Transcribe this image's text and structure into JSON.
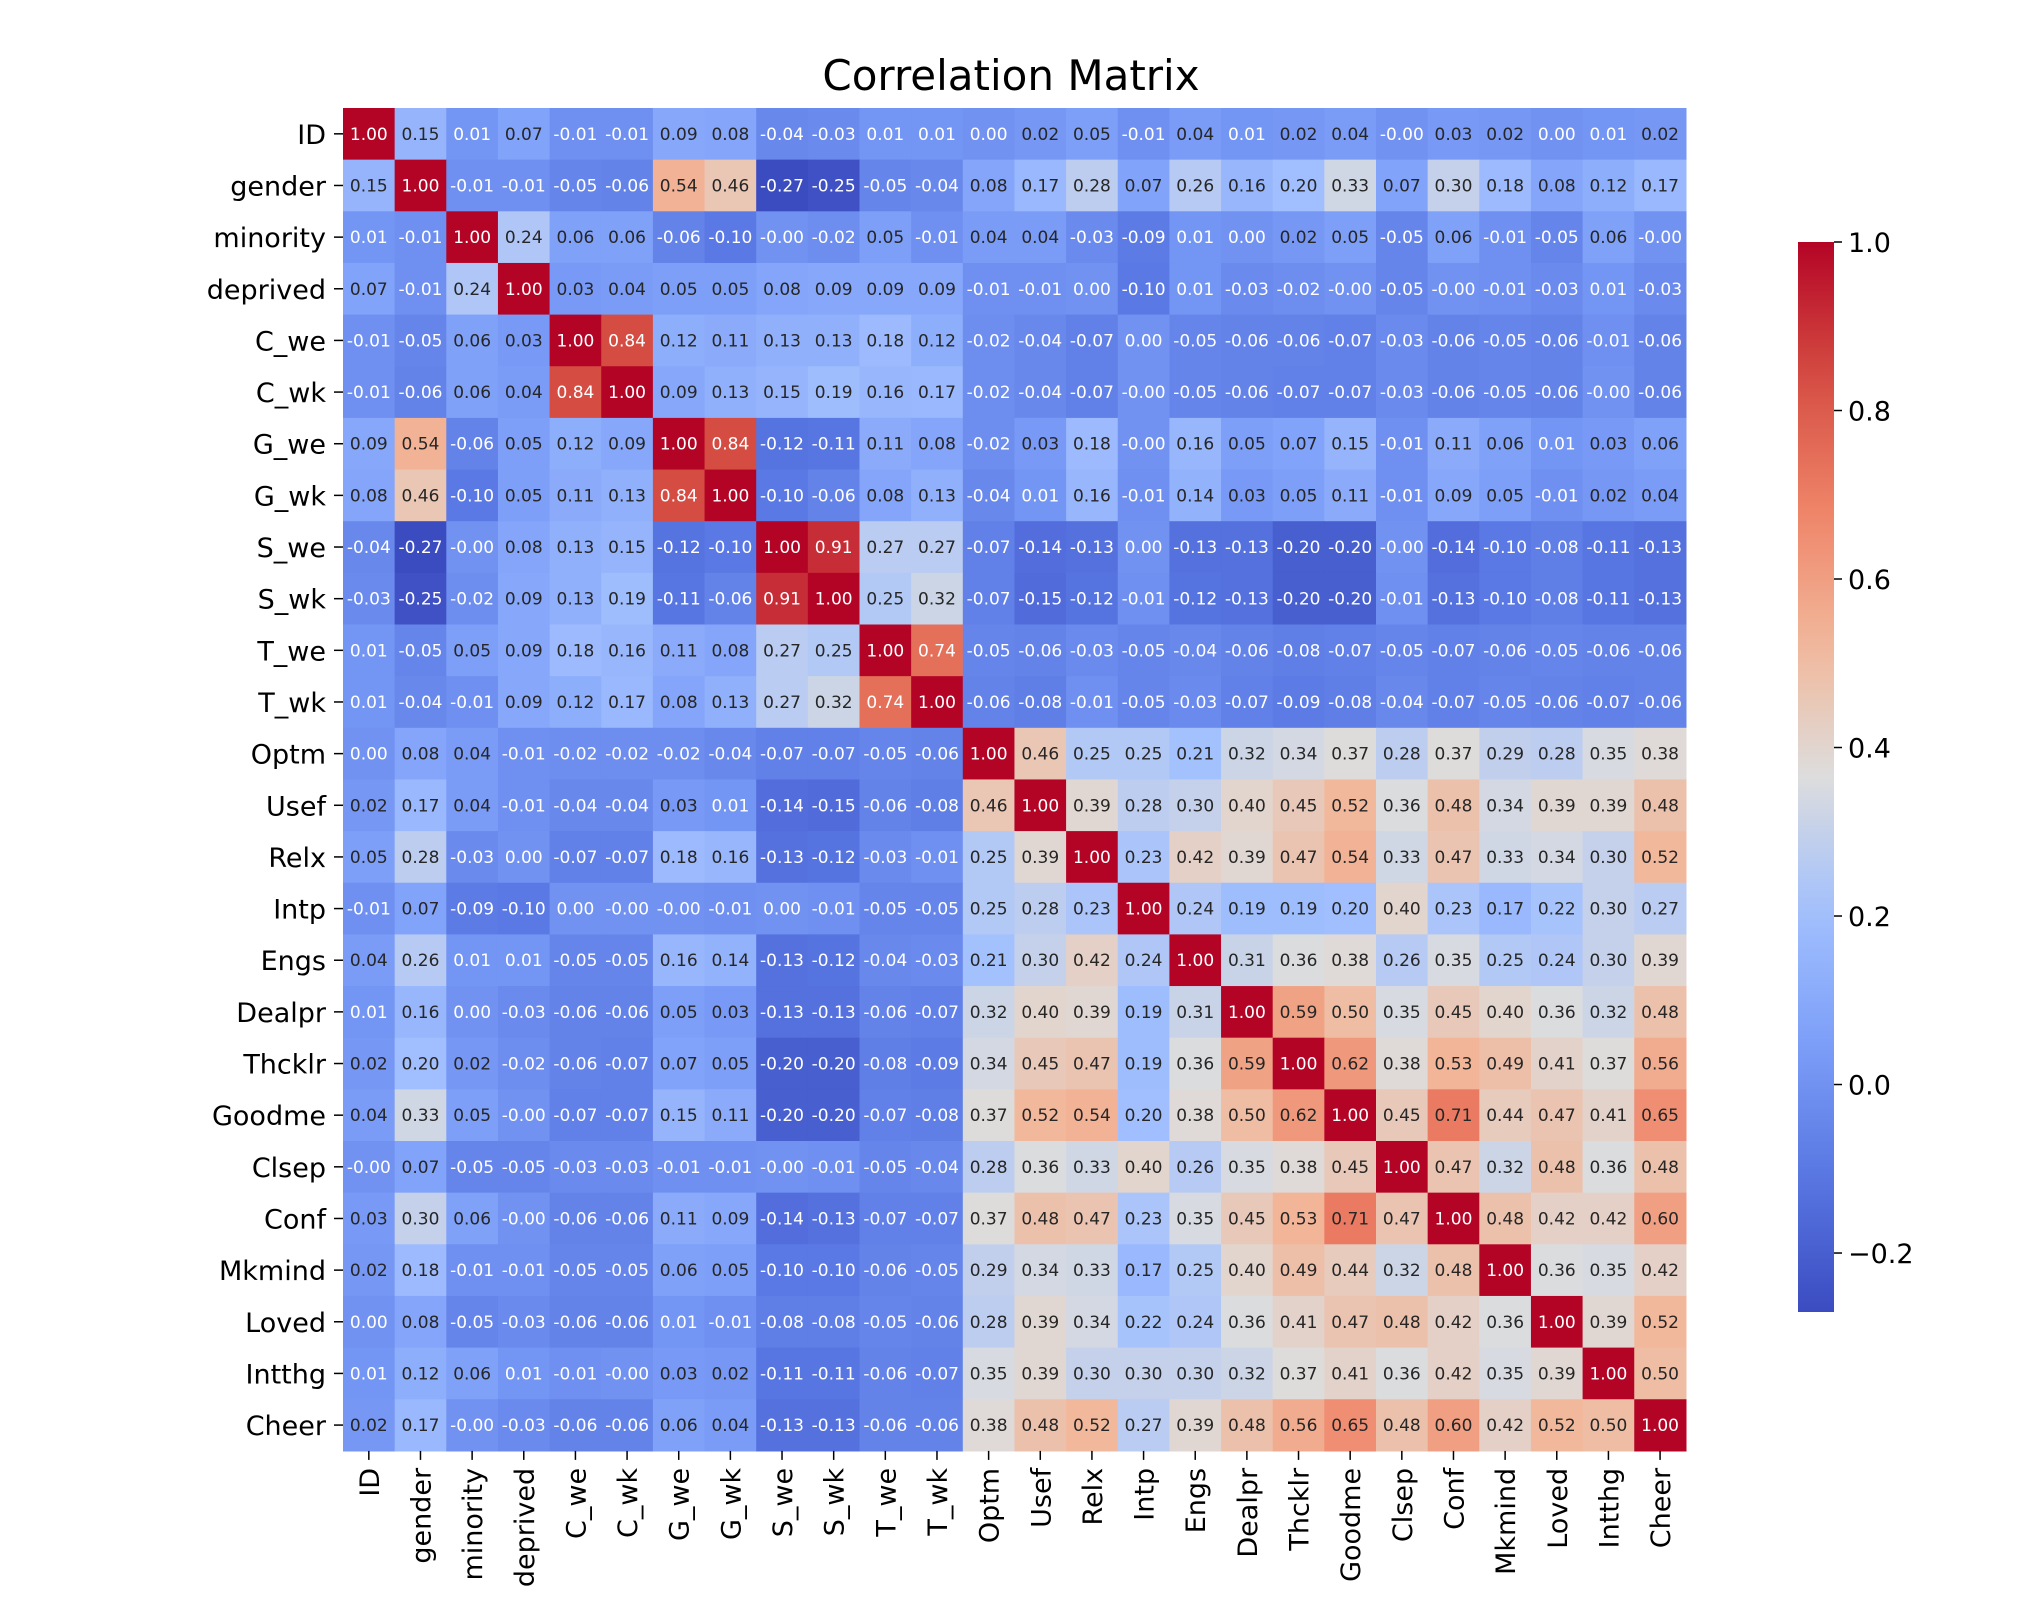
{
  "chart_data": {
    "type": "heatmap",
    "title": "Correlation Matrix",
    "labels": [
      "ID",
      "gender",
      "minority",
      "deprived",
      "C_we",
      "C_wk",
      "G_we",
      "G_wk",
      "S_we",
      "S_wk",
      "T_we",
      "T_wk",
      "Optm",
      "Usef",
      "Relx",
      "Intp",
      "Engs",
      "Dealpr",
      "Thcklr",
      "Goodme",
      "Clsep",
      "Conf",
      "Mkmind",
      "Loved",
      "Intthg",
      "Cheer"
    ],
    "matrix": [
      [
        1.0,
        0.15,
        0.01,
        0.07,
        -0.01,
        -0.01,
        0.09,
        0.08,
        -0.04,
        -0.03,
        0.01,
        0.01,
        0.0,
        0.02,
        0.05,
        -0.01,
        0.04,
        0.01,
        0.02,
        0.04,
        -0.0,
        0.03,
        0.02,
        0.0,
        0.01,
        0.02
      ],
      [
        0.15,
        1.0,
        -0.01,
        -0.01,
        -0.05,
        -0.06,
        0.54,
        0.46,
        -0.27,
        -0.25,
        -0.05,
        -0.04,
        0.08,
        0.17,
        0.28,
        0.07,
        0.26,
        0.16,
        0.2,
        0.33,
        0.07,
        0.3,
        0.18,
        0.08,
        0.12,
        0.17
      ],
      [
        0.01,
        -0.01,
        1.0,
        0.24,
        0.06,
        0.06,
        -0.06,
        -0.1,
        -0.0,
        -0.02,
        0.05,
        -0.01,
        0.04,
        0.04,
        -0.03,
        -0.09,
        0.01,
        0.0,
        0.02,
        0.05,
        -0.05,
        0.06,
        -0.01,
        -0.05,
        0.06,
        -0.0
      ],
      [
        0.07,
        -0.01,
        0.24,
        1.0,
        0.03,
        0.04,
        0.05,
        0.05,
        0.08,
        0.09,
        0.09,
        0.09,
        -0.01,
        -0.01,
        0.0,
        -0.1,
        0.01,
        -0.03,
        -0.02,
        -0.0,
        -0.05,
        -0.0,
        -0.01,
        -0.03,
        0.01,
        -0.03
      ],
      [
        -0.01,
        -0.05,
        0.06,
        0.03,
        1.0,
        0.84,
        0.12,
        0.11,
        0.13,
        0.13,
        0.18,
        0.12,
        -0.02,
        -0.04,
        -0.07,
        0.0,
        -0.05,
        -0.06,
        -0.06,
        -0.07,
        -0.03,
        -0.06,
        -0.05,
        -0.06,
        -0.01,
        -0.06
      ],
      [
        -0.01,
        -0.06,
        0.06,
        0.04,
        0.84,
        1.0,
        0.09,
        0.13,
        0.15,
        0.19,
        0.16,
        0.17,
        -0.02,
        -0.04,
        -0.07,
        -0.0,
        -0.05,
        -0.06,
        -0.07,
        -0.07,
        -0.03,
        -0.06,
        -0.05,
        -0.06,
        -0.0,
        -0.06
      ],
      [
        0.09,
        0.54,
        -0.06,
        0.05,
        0.12,
        0.09,
        1.0,
        0.84,
        -0.12,
        -0.11,
        0.11,
        0.08,
        -0.02,
        0.03,
        0.18,
        -0.0,
        0.16,
        0.05,
        0.07,
        0.15,
        -0.01,
        0.11,
        0.06,
        0.01,
        0.03,
        0.06
      ],
      [
        0.08,
        0.46,
        -0.1,
        0.05,
        0.11,
        0.13,
        0.84,
        1.0,
        -0.1,
        -0.06,
        0.08,
        0.13,
        -0.04,
        0.01,
        0.16,
        -0.01,
        0.14,
        0.03,
        0.05,
        0.11,
        -0.01,
        0.09,
        0.05,
        -0.01,
        0.02,
        0.04
      ],
      [
        -0.04,
        -0.27,
        -0.0,
        0.08,
        0.13,
        0.15,
        -0.12,
        -0.1,
        1.0,
        0.91,
        0.27,
        0.27,
        -0.07,
        -0.14,
        -0.13,
        0.0,
        -0.13,
        -0.13,
        -0.2,
        -0.2,
        -0.0,
        -0.14,
        -0.1,
        -0.08,
        -0.11,
        -0.13
      ],
      [
        -0.03,
        -0.25,
        -0.02,
        0.09,
        0.13,
        0.19,
        -0.11,
        -0.06,
        0.91,
        1.0,
        0.25,
        0.32,
        -0.07,
        -0.15,
        -0.12,
        -0.01,
        -0.12,
        -0.13,
        -0.2,
        -0.2,
        -0.01,
        -0.13,
        -0.1,
        -0.08,
        -0.11,
        -0.13
      ],
      [
        0.01,
        -0.05,
        0.05,
        0.09,
        0.18,
        0.16,
        0.11,
        0.08,
        0.27,
        0.25,
        1.0,
        0.74,
        -0.05,
        -0.06,
        -0.03,
        -0.05,
        -0.04,
        -0.06,
        -0.08,
        -0.07,
        -0.05,
        -0.07,
        -0.06,
        -0.05,
        -0.06,
        -0.06
      ],
      [
        0.01,
        -0.04,
        -0.01,
        0.09,
        0.12,
        0.17,
        0.08,
        0.13,
        0.27,
        0.32,
        0.74,
        1.0,
        -0.06,
        -0.08,
        -0.01,
        -0.05,
        -0.03,
        -0.07,
        -0.09,
        -0.08,
        -0.04,
        -0.07,
        -0.05,
        -0.06,
        -0.07,
        -0.06
      ],
      [
        0.0,
        0.08,
        0.04,
        -0.01,
        -0.02,
        -0.02,
        -0.02,
        -0.04,
        -0.07,
        -0.07,
        -0.05,
        -0.06,
        1.0,
        0.46,
        0.25,
        0.25,
        0.21,
        0.32,
        0.34,
        0.37,
        0.28,
        0.37,
        0.29,
        0.28,
        0.35,
        0.38
      ],
      [
        0.02,
        0.17,
        0.04,
        -0.01,
        -0.04,
        -0.04,
        0.03,
        0.01,
        -0.14,
        -0.15,
        -0.06,
        -0.08,
        0.46,
        1.0,
        0.39,
        0.28,
        0.3,
        0.4,
        0.45,
        0.52,
        0.36,
        0.48,
        0.34,
        0.39,
        0.39,
        0.48
      ],
      [
        0.05,
        0.28,
        -0.03,
        0.0,
        -0.07,
        -0.07,
        0.18,
        0.16,
        -0.13,
        -0.12,
        -0.03,
        -0.01,
        0.25,
        0.39,
        1.0,
        0.23,
        0.42,
        0.39,
        0.47,
        0.54,
        0.33,
        0.47,
        0.33,
        0.34,
        0.3,
        0.52
      ],
      [
        -0.01,
        0.07,
        -0.09,
        -0.1,
        0.0,
        -0.0,
        -0.0,
        -0.01,
        0.0,
        -0.01,
        -0.05,
        -0.05,
        0.25,
        0.28,
        0.23,
        1.0,
        0.24,
        0.19,
        0.19,
        0.2,
        0.4,
        0.23,
        0.17,
        0.22,
        0.3,
        0.27
      ],
      [
        0.04,
        0.26,
        0.01,
        0.01,
        -0.05,
        -0.05,
        0.16,
        0.14,
        -0.13,
        -0.12,
        -0.04,
        -0.03,
        0.21,
        0.3,
        0.42,
        0.24,
        1.0,
        0.31,
        0.36,
        0.38,
        0.26,
        0.35,
        0.25,
        0.24,
        0.3,
        0.39
      ],
      [
        0.01,
        0.16,
        0.0,
        -0.03,
        -0.06,
        -0.06,
        0.05,
        0.03,
        -0.13,
        -0.13,
        -0.06,
        -0.07,
        0.32,
        0.4,
        0.39,
        0.19,
        0.31,
        1.0,
        0.59,
        0.5,
        0.35,
        0.45,
        0.4,
        0.36,
        0.32,
        0.48
      ],
      [
        0.02,
        0.2,
        0.02,
        -0.02,
        -0.06,
        -0.07,
        0.07,
        0.05,
        -0.2,
        -0.2,
        -0.08,
        -0.09,
        0.34,
        0.45,
        0.47,
        0.19,
        0.36,
        0.59,
        1.0,
        0.62,
        0.38,
        0.53,
        0.49,
        0.41,
        0.37,
        0.56
      ],
      [
        0.04,
        0.33,
        0.05,
        -0.0,
        -0.07,
        -0.07,
        0.15,
        0.11,
        -0.2,
        -0.2,
        -0.07,
        -0.08,
        0.37,
        0.52,
        0.54,
        0.2,
        0.38,
        0.5,
        0.62,
        1.0,
        0.45,
        0.71,
        0.44,
        0.47,
        0.41,
        0.65
      ],
      [
        -0.0,
        0.07,
        -0.05,
        -0.05,
        -0.03,
        -0.03,
        -0.01,
        -0.01,
        -0.0,
        -0.01,
        -0.05,
        -0.04,
        0.28,
        0.36,
        0.33,
        0.4,
        0.26,
        0.35,
        0.38,
        0.45,
        1.0,
        0.47,
        0.32,
        0.48,
        0.36,
        0.48
      ],
      [
        0.03,
        0.3,
        0.06,
        -0.0,
        -0.06,
        -0.06,
        0.11,
        0.09,
        -0.14,
        -0.13,
        -0.07,
        -0.07,
        0.37,
        0.48,
        0.47,
        0.23,
        0.35,
        0.45,
        0.53,
        0.71,
        0.47,
        1.0,
        0.48,
        0.42,
        0.42,
        0.6
      ],
      [
        0.02,
        0.18,
        -0.01,
        -0.01,
        -0.05,
        -0.05,
        0.06,
        0.05,
        -0.1,
        -0.1,
        -0.06,
        -0.05,
        0.29,
        0.34,
        0.33,
        0.17,
        0.25,
        0.4,
        0.49,
        0.44,
        0.32,
        0.48,
        1.0,
        0.36,
        0.35,
        0.42
      ],
      [
        0.0,
        0.08,
        -0.05,
        -0.03,
        -0.06,
        -0.06,
        0.01,
        -0.01,
        -0.08,
        -0.08,
        -0.05,
        -0.06,
        0.28,
        0.39,
        0.34,
        0.22,
        0.24,
        0.36,
        0.41,
        0.47,
        0.48,
        0.42,
        0.36,
        1.0,
        0.39,
        0.52
      ],
      [
        0.01,
        0.12,
        0.06,
        0.01,
        -0.01,
        -0.0,
        0.03,
        0.02,
        -0.11,
        -0.11,
        -0.06,
        -0.07,
        0.35,
        0.39,
        0.3,
        0.3,
        0.3,
        0.32,
        0.37,
        0.41,
        0.36,
        0.42,
        0.35,
        0.39,
        1.0,
        0.5
      ],
      [
        0.02,
        0.17,
        -0.0,
        -0.03,
        -0.06,
        -0.06,
        0.06,
        0.04,
        -0.13,
        -0.13,
        -0.06,
        -0.06,
        0.38,
        0.48,
        0.52,
        0.27,
        0.39,
        0.48,
        0.56,
        0.65,
        0.48,
        0.6,
        0.42,
        0.52,
        0.5,
        1.0
      ]
    ],
    "value_format": "2 decimals",
    "colormap": "coolwarm",
    "vmin": -0.27,
    "vmax": 1.0,
    "colorbar": {
      "ticks": [
        -0.2,
        0.0,
        0.2,
        0.4,
        0.6,
        0.8,
        1.0
      ],
      "tick_labels": [
        "−0.2",
        "0.0",
        "0.2",
        "0.4",
        "0.6",
        "0.8",
        "1.0"
      ]
    }
  }
}
